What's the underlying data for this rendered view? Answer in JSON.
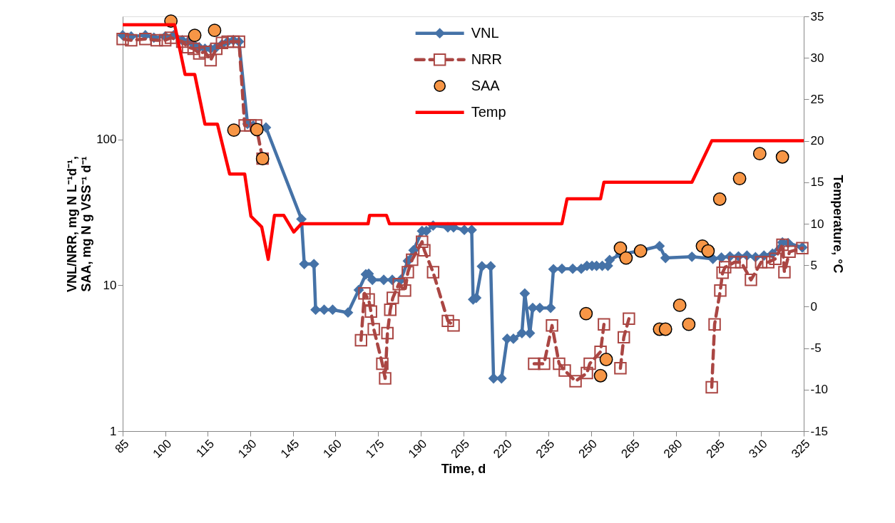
{
  "chart_data": {
    "type": "line",
    "xlabel": "Time, d",
    "ylabel": "VNL/NRR, mg N L⁻¹d⁻¹,\nSAA, mg N g VSS⁻¹ d⁻¹",
    "y2label": "Temperature, °C",
    "xlim": [
      85,
      325
    ],
    "xticks": [
      85,
      100,
      115,
      130,
      145,
      160,
      175,
      190,
      205,
      220,
      235,
      250,
      265,
      280,
      295,
      310,
      325
    ],
    "ylim": [
      1,
      700
    ],
    "yticks": [
      1,
      10,
      100
    ],
    "log": "y",
    "y2lim": [
      -15,
      35
    ],
    "y2ticks": [
      -15,
      -10,
      -5,
      0,
      5,
      10,
      15,
      20,
      25,
      30,
      35
    ],
    "grid": false,
    "legend": "top",
    "series": [
      {
        "name": "VNL",
        "type": "line",
        "color": "#4572a7",
        "marker": "diamond",
        "line_style": "solid",
        "x": [
          85,
          88,
          93,
          96,
          100,
          103,
          106,
          108,
          110,
          112,
          114,
          116,
          118,
          120,
          122,
          124,
          126,
          129,
          131,
          135.5,
          148,
          149,
          152.4,
          153,
          156,
          159,
          164.4,
          168.2,
          170.7,
          171.7,
          173,
          177,
          180,
          183,
          185.5,
          187.5,
          190.5,
          192,
          194.4,
          199.6,
          201.6,
          205.4,
          208,
          208.5,
          209.6,
          211.6,
          214.7,
          215.7,
          218.5,
          220.5,
          222.7,
          225.7,
          226.7,
          228.5,
          229.5,
          232,
          235.8,
          236.8,
          239.8,
          243.6,
          246.6,
          248.6,
          250.4,
          252,
          254,
          256,
          256.6,
          260.4,
          267,
          274.2,
          276.3,
          285.6,
          293,
          296,
          299,
          302,
          305,
          308,
          311,
          314,
          317.5,
          319.5,
          324.5
        ],
        "values": [
          520,
          510,
          520,
          500,
          510,
          520,
          480,
          470,
          450,
          430,
          420,
          420,
          430,
          450,
          470,
          480,
          470,
          128,
          125,
          121,
          28.5,
          14,
          14,
          6.8,
          6.8,
          6.8,
          6.5,
          9.3,
          11.9,
          12,
          10.9,
          10.9,
          10.9,
          10.9,
          14.7,
          17.4,
          23.6,
          23.6,
          25.7,
          25,
          25,
          24,
          24,
          8.0,
          8.2,
          13.5,
          13.5,
          2.3,
          2.3,
          4.3,
          4.3,
          4.7,
          8.8,
          4.7,
          7.0,
          7.0,
          7.0,
          12.9,
          13,
          13,
          13,
          13.6,
          13.6,
          13.6,
          13.6,
          13.6,
          14.9,
          16.3,
          17.2,
          18.6,
          15.4,
          15.7,
          15.2,
          15.5,
          15.8,
          15.8,
          16,
          15.6,
          16,
          16.5,
          19.7,
          19.5,
          18.2
        ]
      },
      {
        "name": "NRR",
        "type": "line",
        "color": "#aa4643",
        "marker": "square",
        "line_style": "dashed",
        "x": [
          85,
          88,
          93,
          97,
          100,
          102,
          106,
          108,
          110,
          112,
          114,
          116,
          118,
          120,
          122,
          124,
          126,
          128,
          130,
          132,
          134.3,
          137,
          169,
          170.2,
          171.7,
          172.5,
          173.5,
          176.5,
          177.5,
          178.3,
          179.3,
          180.2,
          182.3,
          184.5,
          185.5,
          187,
          190.5,
          191.3,
          194.4,
          199.6,
          201.6,
          205,
          230,
          233.5,
          236.3,
          238.8,
          240.8,
          244.6,
          248.6,
          249.6,
          253.4,
          254.6,
          256,
          260.4,
          261.6,
          263.4,
          272,
          292.6,
          293.6,
          295.6,
          296.4,
          297.3,
          300.6,
          303,
          306.4,
          310,
          312.5,
          315,
          317.5,
          318.2,
          320,
          324.5
        ],
        "values": [
          490,
          480,
          490,
          480,
          480,
          500,
          470,
          430,
          420,
          390,
          400,
          350,
          420,
          460,
          470,
          470,
          470,
          125,
          125,
          125,
          74,
          null,
          4.2,
          8.8,
          8.0,
          6.6,
          5.0,
          2.9,
          2.3,
          4.7,
          6.8,
          8.2,
          10.2,
          9.2,
          12.3,
          15,
          19.9,
          17.4,
          12.3,
          5.7,
          5.3,
          null,
          2.9,
          2.9,
          5.3,
          2.9,
          2.6,
          2.2,
          2.5,
          2.9,
          3.5,
          5.4,
          null,
          2.7,
          4.4,
          5.9,
          null,
          2.0,
          5.4,
          9.2,
          12.2,
          13.3,
          14.4,
          14.4,
          10.9,
          14.4,
          14.4,
          15.2,
          19,
          12.3,
          17,
          18
        ]
      },
      {
        "name": "SAA",
        "type": "scatter",
        "color": "#f79646",
        "marker": "circle",
        "x": [
          102,
          110.4,
          117.4,
          124.2,
          132.3,
          134.3,
          248.3,
          253.4,
          255.4,
          260.4,
          262.4,
          267.5,
          274.2,
          276.3,
          281.3,
          284.5,
          289.3,
          291.3,
          295.4,
          302.4,
          309.5,
          317.5
        ],
        "values": [
          650,
          519,
          561,
          116,
          117,
          74,
          6.4,
          2.4,
          3.1,
          18,
          15.4,
          17.2,
          5.0,
          5.0,
          7.3,
          5.4,
          18.6,
          17.2,
          39,
          54,
          80,
          76
        ]
      },
      {
        "name": "Temp",
        "type": "line",
        "axis": "y2",
        "color": "#ff0000",
        "marker": "none",
        "line_style": "solid",
        "x": [
          85,
          103.3,
          107,
          110.4,
          114,
          118.4,
          122.7,
          128,
          130.2,
          134,
          136.3,
          138.5,
          141.8,
          145.3,
          148,
          171.5,
          172,
          178,
          179,
          239.8,
          241.6,
          253.4,
          254.6,
          285.6,
          292.6,
          325
        ],
        "values": [
          34,
          34,
          28,
          28,
          22,
          22,
          16,
          16,
          10.9,
          9.6,
          5.7,
          11,
          11,
          9,
          10,
          10,
          11,
          11,
          10,
          10,
          13,
          13,
          15,
          15,
          20,
          20
        ]
      }
    ]
  }
}
